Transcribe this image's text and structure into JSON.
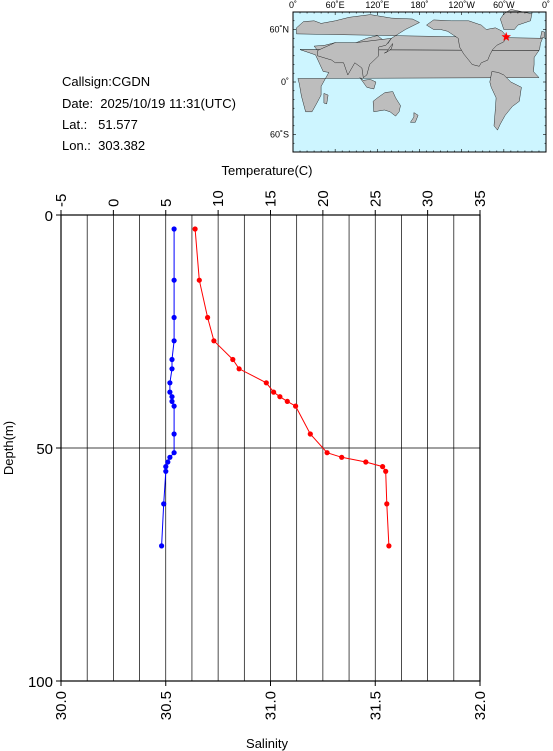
{
  "info": {
    "callsign": "Callsign:CGDN",
    "date": "Date:  2025/10/19 11:31(UTC)",
    "lat": "Lat.:   51.577",
    "lon": "Lon.:  303.382"
  },
  "map": {
    "top_ticks": [
      "0˚",
      "60˚E",
      "120˚E",
      "180˚",
      "120˚W",
      "60˚W",
      "0˚"
    ],
    "left_ticks": [
      "60˚N",
      "0˚",
      "60˚S"
    ],
    "ocean_color": "#cdf5ff",
    "land_color": "#bdbdbd",
    "marker": {
      "lat": 51.577,
      "lon": 303.382,
      "symbol": "star",
      "color": "#ff0000"
    }
  },
  "chart_data": {
    "type": "line",
    "ylabel": "Depth(m)",
    "ylim": [
      0,
      100
    ],
    "yticks": [
      "0",
      "50",
      "100"
    ],
    "y_inverted": true,
    "top_axis": {
      "label": "Temperature(C)",
      "range": [
        -5,
        35
      ],
      "ticks": [
        "-5",
        "0",
        "5",
        "10",
        "15",
        "20",
        "25",
        "30",
        "35"
      ]
    },
    "bottom_axis": {
      "label": "Salinity",
      "range": [
        30.0,
        32.0
      ],
      "ticks": [
        "30.0",
        "30.5",
        "31.0",
        "31.5",
        "32.0"
      ]
    },
    "grid": true,
    "series": [
      {
        "key": "temperature",
        "axis": "top",
        "color": "#ff0000",
        "points": [
          [
            7.8,
            3
          ],
          [
            8.2,
            14
          ],
          [
            9.0,
            22
          ],
          [
            9.6,
            27
          ],
          [
            11.4,
            31
          ],
          [
            12.0,
            33
          ],
          [
            14.6,
            36
          ],
          [
            15.3,
            38
          ],
          [
            15.9,
            39
          ],
          [
            16.6,
            40
          ],
          [
            17.4,
            41
          ],
          [
            18.8,
            47
          ],
          [
            20.4,
            51
          ],
          [
            21.8,
            52
          ],
          [
            24.1,
            53
          ],
          [
            25.7,
            54
          ],
          [
            26.0,
            55
          ],
          [
            26.1,
            62
          ],
          [
            26.3,
            71
          ]
        ]
      },
      {
        "key": "salinity",
        "axis": "bottom",
        "color": "#0000ff",
        "points": [
          [
            30.54,
            3
          ],
          [
            30.54,
            14
          ],
          [
            30.54,
            22
          ],
          [
            30.54,
            27
          ],
          [
            30.53,
            31
          ],
          [
            30.53,
            33
          ],
          [
            30.52,
            36
          ],
          [
            30.52,
            38
          ],
          [
            30.53,
            39
          ],
          [
            30.53,
            40
          ],
          [
            30.54,
            41
          ],
          [
            30.54,
            47
          ],
          [
            30.54,
            51
          ],
          [
            30.52,
            52
          ],
          [
            30.51,
            53
          ],
          [
            30.5,
            54
          ],
          [
            30.5,
            55
          ],
          [
            30.49,
            62
          ],
          [
            30.48,
            71
          ]
        ]
      }
    ]
  }
}
